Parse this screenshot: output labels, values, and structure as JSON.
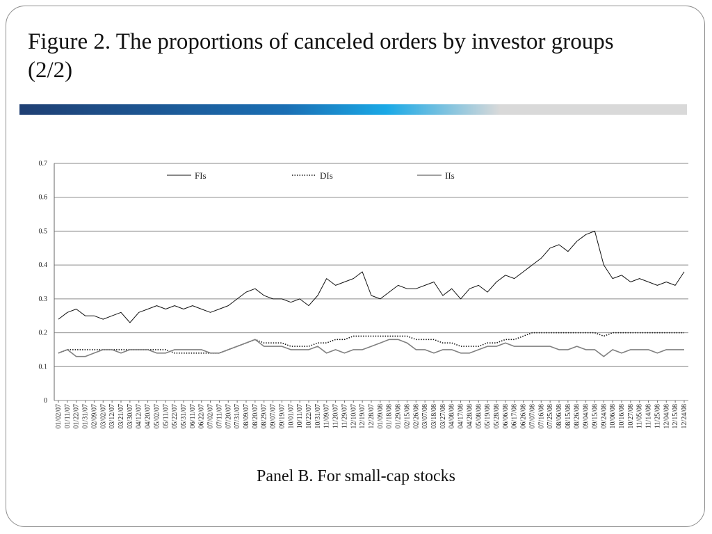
{
  "slide": {
    "title": "Figure 2. The proportions of canceled orders by investor groups (2/2)",
    "caption": "Panel B. For small-cap stocks"
  },
  "colors": {
    "accent_gradient": [
      "#1f3f73",
      "#1a6fb4",
      "#1aa9e6",
      "#d9d9d9"
    ],
    "fis_line": "#111111",
    "dis_line": "#111111",
    "iis_line": "#808080",
    "grid": "#8a8a8a"
  },
  "chart_data": {
    "type": "line",
    "ylim": [
      0,
      0.7
    ],
    "yticks": [
      "0",
      "0.1",
      "0.2",
      "0.3",
      "0.4",
      "0.5",
      "0.6",
      "0.7"
    ],
    "grid": true,
    "legend_position": "top",
    "categories": [
      "01/02/07",
      "01/11/07",
      "01/22/07",
      "01/31/07",
      "02/09/07",
      "03/02/07",
      "03/12/07",
      "03/21/07",
      "03/30/07",
      "04/12/07",
      "04/20/07",
      "05/02/07",
      "05/11/07",
      "05/22/07",
      "05/31/07",
      "06/11/07",
      "06/22/07",
      "07/02/07",
      "07/11/07",
      "07/20/07",
      "07/31/07",
      "08/09/07",
      "08/20/07",
      "08/29/07",
      "09/07/07",
      "09/19/07",
      "10/01/07",
      "10/11/07",
      "10/22/07",
      "10/31/07",
      "11/09/07",
      "11/20/07",
      "11/29/07",
      "12/10/07",
      "12/19/07",
      "12/28/07",
      "01/09/08",
      "01/18/08",
      "01/29/08",
      "02/15/08",
      "02/26/08",
      "03/07/08",
      "03/18/08",
      "03/27/08",
      "04/08/08",
      "04/17/08",
      "04/28/08",
      "05/08/08",
      "05/19/08",
      "05/28/08",
      "06/06/08",
      "06/17/08",
      "06/26/08",
      "07/07/08",
      "07/16/08",
      "07/25/08",
      "08/06/08",
      "08/15/08",
      "08/26/08",
      "09/04/08",
      "09/15/08",
      "09/24/08",
      "10/06/08",
      "10/16/08",
      "10/27/08",
      "11/05/08",
      "11/14/08",
      "11/25/08",
      "12/04/08",
      "12/15/08",
      "12/24/08"
    ],
    "series": [
      {
        "name": "FIs",
        "style": "solid",
        "values": [
          0.24,
          0.26,
          0.27,
          0.25,
          0.25,
          0.24,
          0.25,
          0.26,
          0.23,
          0.26,
          0.27,
          0.28,
          0.27,
          0.28,
          0.27,
          0.28,
          0.27,
          0.26,
          0.27,
          0.28,
          0.3,
          0.32,
          0.33,
          0.31,
          0.3,
          0.3,
          0.29,
          0.3,
          0.28,
          0.31,
          0.36,
          0.34,
          0.35,
          0.36,
          0.38,
          0.31,
          0.3,
          0.32,
          0.34,
          0.33,
          0.33,
          0.34,
          0.35,
          0.31,
          0.33,
          0.3,
          0.33,
          0.34,
          0.32,
          0.35,
          0.37,
          0.36,
          0.38,
          0.4,
          0.42,
          0.45,
          0.46,
          0.44,
          0.47,
          0.49,
          0.5,
          0.4,
          0.36,
          0.37,
          0.35,
          0.36,
          0.35,
          0.34,
          0.35,
          0.34,
          0.38
        ]
      },
      {
        "name": "DIs",
        "style": "dotted",
        "values": [
          0.14,
          0.15,
          0.15,
          0.15,
          0.15,
          0.15,
          0.15,
          0.15,
          0.15,
          0.15,
          0.15,
          0.15,
          0.15,
          0.14,
          0.14,
          0.14,
          0.14,
          0.14,
          0.14,
          0.15,
          0.16,
          0.17,
          0.18,
          0.17,
          0.17,
          0.17,
          0.16,
          0.16,
          0.16,
          0.17,
          0.17,
          0.18,
          0.18,
          0.19,
          0.19,
          0.19,
          0.19,
          0.19,
          0.19,
          0.19,
          0.18,
          0.18,
          0.18,
          0.17,
          0.17,
          0.16,
          0.16,
          0.16,
          0.17,
          0.17,
          0.18,
          0.18,
          0.19,
          0.2,
          0.2,
          0.2,
          0.2,
          0.2,
          0.2,
          0.2,
          0.2,
          0.19,
          0.2,
          0.2,
          0.2,
          0.2,
          0.2,
          0.2,
          0.2,
          0.2,
          0.2
        ]
      },
      {
        "name": "IIs",
        "style": "solid",
        "values": [
          0.14,
          0.15,
          0.13,
          0.13,
          0.14,
          0.15,
          0.15,
          0.14,
          0.15,
          0.15,
          0.15,
          0.14,
          0.14,
          0.15,
          0.15,
          0.15,
          0.15,
          0.14,
          0.14,
          0.15,
          0.16,
          0.17,
          0.18,
          0.16,
          0.16,
          0.16,
          0.15,
          0.15,
          0.15,
          0.16,
          0.14,
          0.15,
          0.14,
          0.15,
          0.15,
          0.16,
          0.17,
          0.18,
          0.18,
          0.17,
          0.15,
          0.15,
          0.14,
          0.15,
          0.15,
          0.14,
          0.14,
          0.15,
          0.16,
          0.16,
          0.17,
          0.16,
          0.16,
          0.16,
          0.16,
          0.16,
          0.15,
          0.15,
          0.16,
          0.15,
          0.15,
          0.13,
          0.15,
          0.14,
          0.15,
          0.15,
          0.15,
          0.14,
          0.15,
          0.15,
          0.15
        ]
      }
    ]
  }
}
